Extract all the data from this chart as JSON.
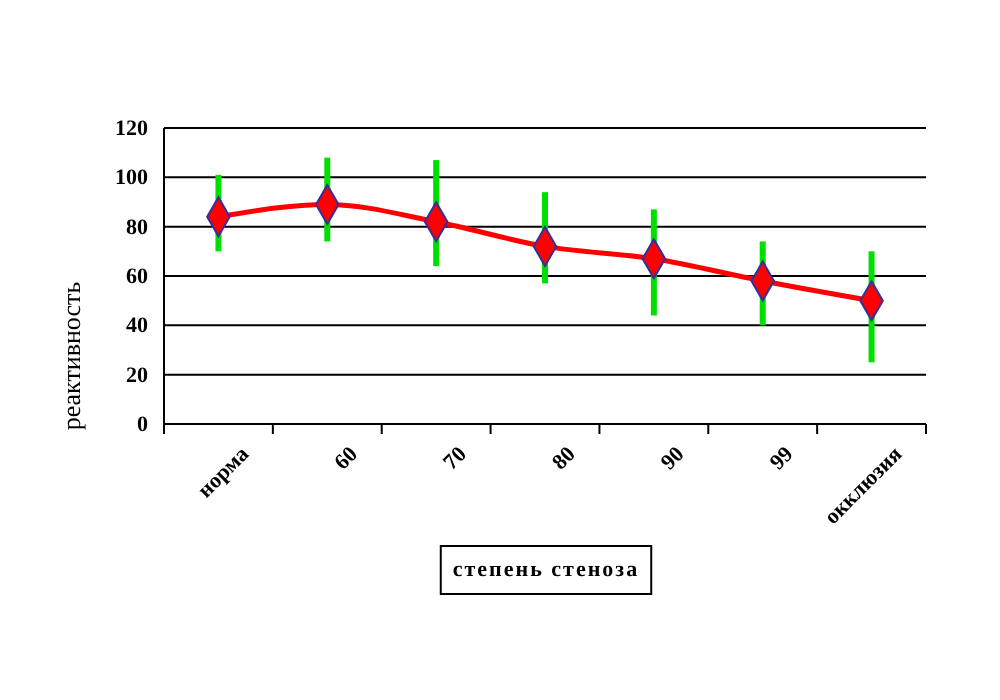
{
  "chart_data": {
    "type": "line",
    "xlabel": "степень стеноза",
    "ylabel": "реактивность",
    "categories": [
      "норма",
      "60",
      "70",
      "80",
      "90",
      "99",
      "окклюзия"
    ],
    "series": [
      {
        "color": "#ff0000",
        "values": [
          84,
          89,
          82,
          72,
          67,
          58,
          50
        ],
        "errors": [
          [
            70,
            101
          ],
          [
            74,
            108
          ],
          [
            64,
            107
          ],
          [
            57,
            94
          ],
          [
            44,
            87
          ],
          [
            40,
            74
          ],
          [
            25,
            70
          ]
        ]
      }
    ],
    "ylim": [
      0,
      120
    ],
    "yticks": [
      0,
      20,
      40,
      60,
      80,
      100,
      120
    ],
    "grid": "y",
    "marker": "diamond",
    "line_style": "solid"
  }
}
